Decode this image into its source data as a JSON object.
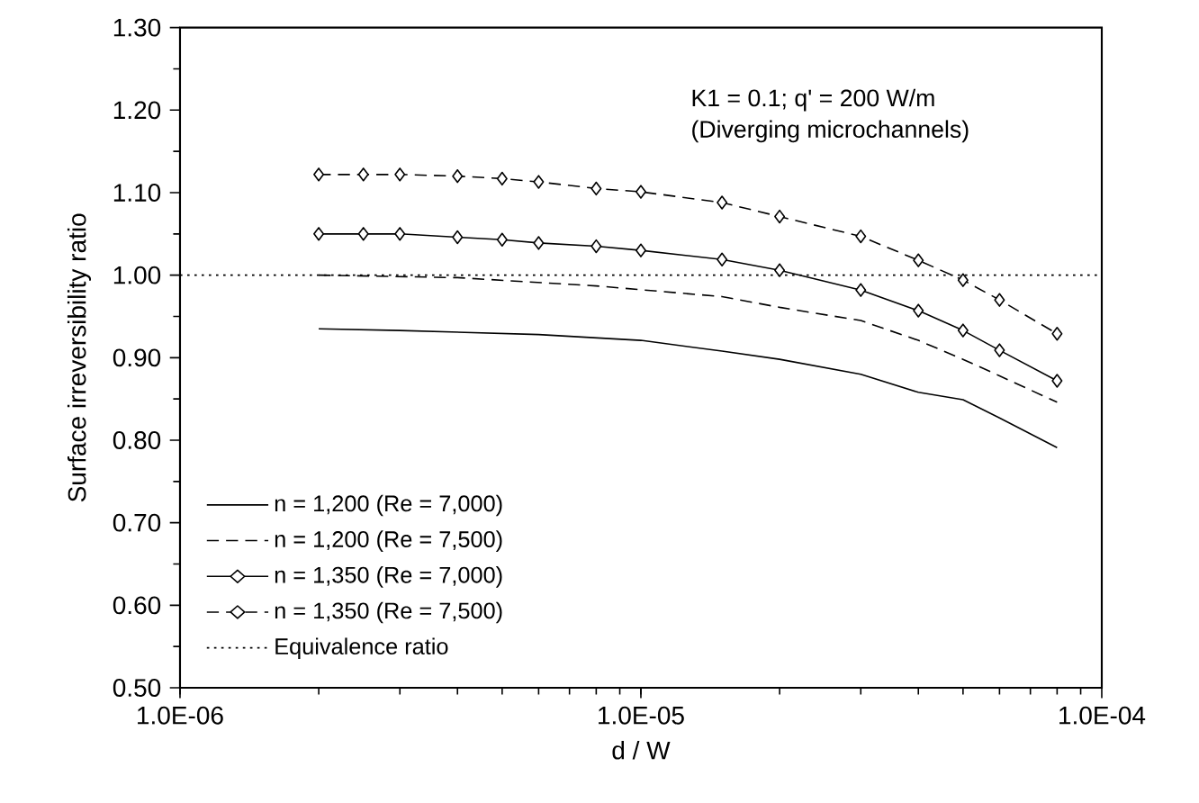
{
  "chart_data": {
    "type": "line",
    "xlabel": "d / W",
    "ylabel": "Surface irreversibility ratio",
    "annotations": [
      "K1 = 0.1;  q' = 200 W/m",
      "(Diverging microchannels)"
    ],
    "log": "x",
    "xlim": [
      1e-06,
      0.0001
    ],
    "ylim": [
      0.5,
      1.3
    ],
    "xticks": [
      {
        "value": 1e-06,
        "label": "1.0E-06"
      },
      {
        "value": 1e-05,
        "label": "1.0E-05"
      },
      {
        "value": 0.0001,
        "label": "1.0E-04"
      }
    ],
    "yticks": [
      {
        "value": 0.5,
        "label": "0.50"
      },
      {
        "value": 0.6,
        "label": "0.60"
      },
      {
        "value": 0.7,
        "label": "0.70"
      },
      {
        "value": 0.8,
        "label": "0.80"
      },
      {
        "value": 0.9,
        "label": "0.90"
      },
      {
        "value": 1.0,
        "label": "1.00"
      },
      {
        "value": 1.1,
        "label": "1.10"
      },
      {
        "value": 1.2,
        "label": "1.20"
      },
      {
        "value": 1.3,
        "label": "1.30"
      }
    ],
    "grid": false,
    "legend": "bottom left",
    "series": [
      {
        "name": "n = 1,200 (Re = 7,000)",
        "color": "#000000",
        "line_style": "solid",
        "marker": "none",
        "x": [
          2e-06,
          3e-06,
          6e-06,
          1e-05,
          1.5e-05,
          2e-05,
          3e-05,
          4e-05,
          5e-05,
          6e-05,
          8e-05
        ],
        "values": [
          0.935,
          0.933,
          0.928,
          0.921,
          0.908,
          0.898,
          0.88,
          0.858,
          0.849,
          0.827,
          0.791
        ]
      },
      {
        "name": "n = 1,200 (Re = 7,500)",
        "color": "#000000",
        "line_style": "dashed",
        "marker": "none",
        "x": [
          2e-06,
          4e-06,
          8e-06,
          1.5e-05,
          2e-05,
          3e-05,
          4e-05,
          5e-05,
          6e-05,
          8e-05
        ],
        "values": [
          1.0,
          0.997,
          0.987,
          0.974,
          0.961,
          0.945,
          0.921,
          0.898,
          0.878,
          0.846
        ]
      },
      {
        "name": "n = 1,350 (Re = 7,000)",
        "color": "#000000",
        "line_style": "solid",
        "marker": "diamond",
        "x": [
          2e-06,
          2.5e-06,
          3e-06,
          4e-06,
          5e-06,
          6e-06,
          8e-06,
          1e-05,
          1.5e-05,
          2e-05,
          3e-05,
          4e-05,
          5e-05,
          6e-05,
          8e-05
        ],
        "values": [
          1.05,
          1.05,
          1.05,
          1.046,
          1.043,
          1.039,
          1.035,
          1.03,
          1.019,
          1.006,
          0.982,
          0.957,
          0.933,
          0.909,
          0.872
        ]
      },
      {
        "name": "n = 1,350 (Re = 7,500)",
        "color": "#000000",
        "line_style": "dashed",
        "marker": "diamond",
        "x": [
          2e-06,
          2.5e-06,
          3e-06,
          4e-06,
          5e-06,
          6e-06,
          8e-06,
          1e-05,
          1.5e-05,
          2e-05,
          3e-05,
          4e-05,
          5e-05,
          6e-05,
          8e-05
        ],
        "values": [
          1.122,
          1.122,
          1.122,
          1.12,
          1.117,
          1.113,
          1.105,
          1.101,
          1.088,
          1.071,
          1.047,
          1.018,
          0.994,
          0.97,
          0.929
        ]
      }
    ],
    "ref_lines": [
      {
        "axis": "y",
        "value": 1.0,
        "label": "Equivalence ratio",
        "color": "#000000",
        "line_style": "dotted"
      }
    ]
  }
}
